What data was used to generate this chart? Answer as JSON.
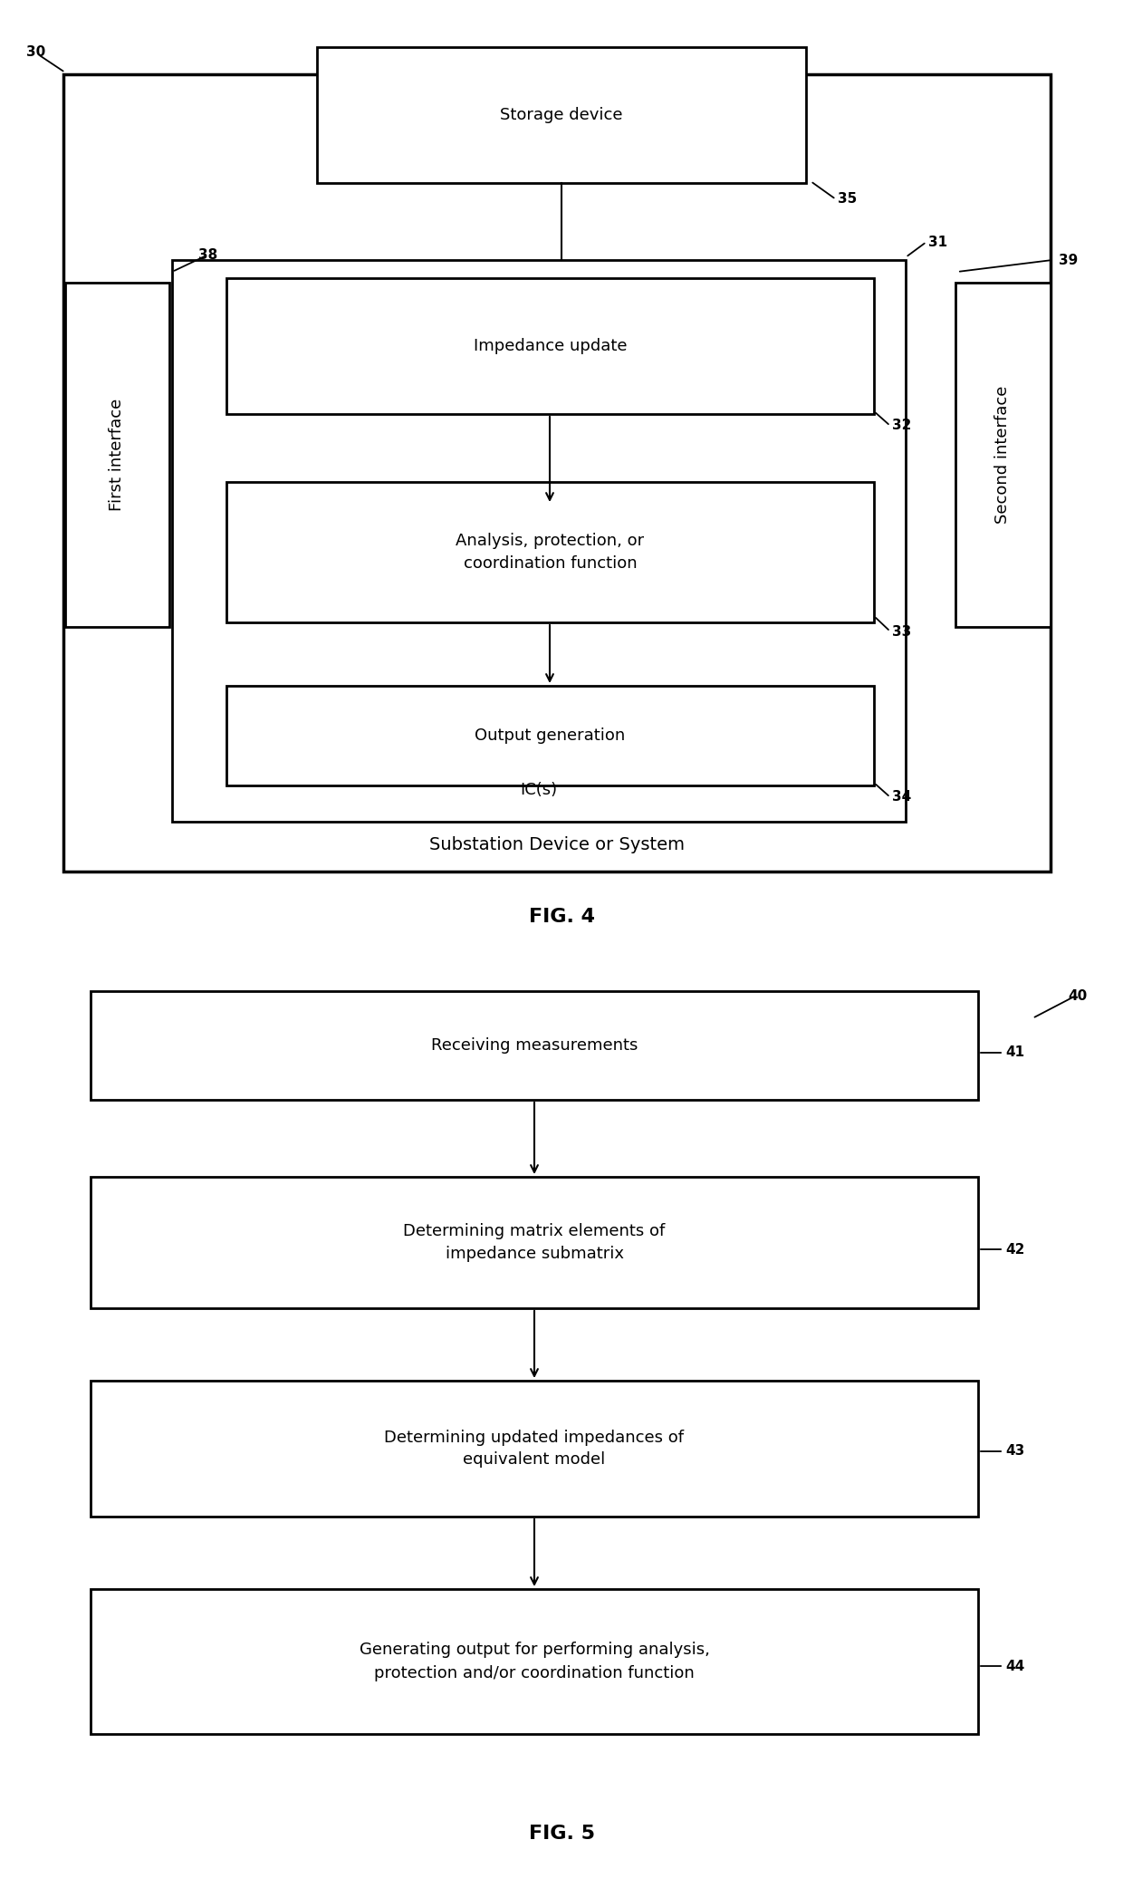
{
  "fig_width": 12.4,
  "fig_height": 20.84,
  "bg_color": "#ffffff",
  "fig4": {
    "title": "FIG. 4",
    "label_30": "30",
    "label_31": "31",
    "label_35": "35",
    "label_38": "38",
    "label_39": "39",
    "label_32": "32",
    "label_33": "33",
    "label_34": "34",
    "outer_box_label": "Substation Device or System",
    "storage_label": "Storage device",
    "inner_box_label": "IC(s)",
    "first_interface_label": "First interface",
    "second_interface_label": "Second interface",
    "impedance_label": "Impedance update",
    "analysis_label": "Analysis, protection, or\ncoordination function",
    "output_label": "Output generation"
  },
  "fig5": {
    "title": "FIG. 5",
    "label_40": "40",
    "label_41": "41",
    "label_42": "42",
    "label_43": "43",
    "label_44": "44",
    "box1_label": "Receiving measurements",
    "box2_label": "Determining matrix elements of\nimpedance submatrix",
    "box3_label": "Determining updated impedances of\nequivalent model",
    "box4_label": "Generating output for performing analysis,\nprotection and/or coordination function"
  }
}
